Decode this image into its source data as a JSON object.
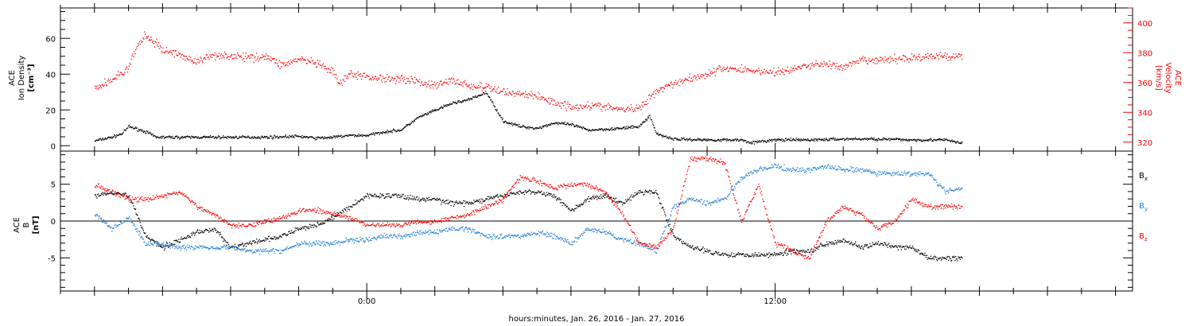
{
  "chart_data": [
    {
      "type": "scatter",
      "panel": "top",
      "ylabel_left": [
        "ACE",
        "Ion Density",
        "[cm⁻³]"
      ],
      "ylabel_right": [
        "ACE",
        "Velocity",
        "[km/s]"
      ],
      "ylim_left": [
        -3,
        77
      ],
      "ylim_right": [
        314,
        410
      ],
      "yticks_left": [
        0,
        20,
        40,
        60
      ],
      "yticks_right": [
        320,
        340,
        360,
        380,
        400
      ],
      "series": [
        {
          "axis": "left",
          "color": "#000000",
          "points": [
            [
              -8,
              3
            ],
            [
              -7.5,
              5
            ],
            [
              -7.2,
              7
            ],
            [
              -7,
              11
            ],
            [
              -6.5,
              8
            ],
            [
              -6.2,
              5
            ],
            [
              -6,
              5
            ],
            [
              -5,
              5
            ],
            [
              -4,
              5
            ],
            [
              -3,
              5
            ],
            [
              -2,
              5.5
            ],
            [
              -1.5,
              4.5
            ],
            [
              -1,
              5
            ],
            [
              -0.5,
              6
            ],
            [
              0,
              6
            ],
            [
              0.5,
              8
            ],
            [
              1,
              9
            ],
            [
              1.5,
              16
            ],
            [
              2,
              20
            ],
            [
              2.5,
              24
            ],
            [
              3,
              26
            ],
            [
              3.5,
              30
            ],
            [
              4,
              14
            ],
            [
              4.5,
              11
            ],
            [
              5,
              10
            ],
            [
              5.5,
              13
            ],
            [
              6,
              12
            ],
            [
              6.5,
              9
            ],
            [
              7,
              9.5
            ],
            [
              7.5,
              10
            ],
            [
              8,
              11
            ],
            [
              8.3,
              17
            ],
            [
              8.5,
              7
            ],
            [
              9,
              4
            ],
            [
              10,
              3.5
            ],
            [
              11,
              3.5
            ],
            [
              11.3,
              2
            ],
            [
              12,
              3.5
            ],
            [
              13,
              3.5
            ],
            [
              14,
              4
            ],
            [
              15,
              4
            ],
            [
              16,
              3.5
            ],
            [
              17,
              3.5
            ],
            [
              17.5,
              1.5
            ]
          ]
        },
        {
          "axis": "right",
          "color": "#ff0000",
          "points": [
            [
              -8,
              356
            ],
            [
              -7.5,
              362
            ],
            [
              -7,
              370
            ],
            [
              -6.8,
              383
            ],
            [
              -6.5,
              392
            ],
            [
              -6,
              382
            ],
            [
              -5.5,
              379
            ],
            [
              -5,
              374
            ],
            [
              -4.5,
              379
            ],
            [
              -4,
              378
            ],
            [
              -3.5,
              377
            ],
            [
              -3,
              378
            ],
            [
              -2.5,
              372
            ],
            [
              -2,
              376
            ],
            [
              -1.5,
              373
            ],
            [
              -1,
              367
            ],
            [
              -0.8,
              359
            ],
            [
              -0.5,
              366
            ],
            [
              0,
              364
            ],
            [
              0.5,
              363
            ],
            [
              1,
              363
            ],
            [
              1.5,
              361
            ],
            [
              2,
              358
            ],
            [
              2.5,
              362
            ],
            [
              3,
              358
            ],
            [
              3.5,
              357
            ],
            [
              4,
              354
            ],
            [
              4.5,
              353
            ],
            [
              5,
              351
            ],
            [
              5.5,
              347
            ],
            [
              6,
              344
            ],
            [
              6.5,
              345
            ],
            [
              7,
              344
            ],
            [
              7.5,
              342
            ],
            [
              8,
              343
            ],
            [
              8.5,
              355
            ],
            [
              9,
              360
            ],
            [
              9.5,
              363
            ],
            [
              10,
              366
            ],
            [
              10.5,
              370
            ],
            [
              11,
              369
            ],
            [
              11.5,
              368
            ],
            [
              12,
              367
            ],
            [
              12.5,
              369
            ],
            [
              13,
              372
            ],
            [
              13.5,
              373
            ],
            [
              14,
              370
            ],
            [
              14.5,
              375
            ],
            [
              15,
              375
            ],
            [
              16,
              377
            ],
            [
              17,
              378
            ],
            [
              17.5,
              378
            ]
          ]
        }
      ]
    },
    {
      "type": "scatter",
      "panel": "bottom",
      "ylabel_left": [
        "ACE",
        "B",
        "[nT]"
      ],
      "ylim": [
        -9.5,
        9.5
      ],
      "yticks": [
        -5,
        0,
        5
      ],
      "zero_line": true,
      "legend": [
        "Bx",
        "By",
        "Bz"
      ],
      "series": [
        {
          "name": "Bx",
          "color": "#000000",
          "points": [
            [
              -8,
              3.5
            ],
            [
              -7.5,
              4
            ],
            [
              -7,
              3.5
            ],
            [
              -6.5,
              -2
            ],
            [
              -6,
              -3.5
            ],
            [
              -5.5,
              -2.5
            ],
            [
              -5,
              -1.5
            ],
            [
              -4.5,
              -1
            ],
            [
              -4,
              -3.5
            ],
            [
              -3.5,
              -3
            ],
            [
              -3,
              -2.5
            ],
            [
              -2.5,
              -2
            ],
            [
              -2,
              -1
            ],
            [
              -1.5,
              -0.5
            ],
            [
              -1,
              0.5
            ],
            [
              -0.5,
              2
            ],
            [
              0,
              3.5
            ],
            [
              0.5,
              3.5
            ],
            [
              1,
              3.5
            ],
            [
              1.5,
              3
            ],
            [
              2,
              3
            ],
            [
              2.5,
              2.5
            ],
            [
              3,
              2.5
            ],
            [
              3.5,
              3
            ],
            [
              4,
              3.5
            ],
            [
              4.5,
              4
            ],
            [
              5,
              4
            ],
            [
              5.5,
              3.5
            ],
            [
              6,
              1.5
            ],
            [
              6.5,
              3
            ],
            [
              7,
              3.5
            ],
            [
              7.5,
              2.5
            ],
            [
              8,
              4
            ],
            [
              8.5,
              4
            ],
            [
              9,
              -2
            ],
            [
              9.5,
              -3.5
            ],
            [
              10,
              -4
            ],
            [
              10.5,
              -4.5
            ],
            [
              11,
              -4.5
            ],
            [
              11.5,
              -4.5
            ],
            [
              12,
              -4.5
            ],
            [
              12.5,
              -4
            ],
            [
              13,
              -4
            ],
            [
              13.5,
              -3
            ],
            [
              14,
              -2.5
            ],
            [
              14.5,
              -3.5
            ],
            [
              15,
              -3
            ],
            [
              15.5,
              -3.5
            ],
            [
              16,
              -3.5
            ],
            [
              16.5,
              -5
            ],
            [
              17,
              -5
            ],
            [
              17.5,
              -5
            ]
          ]
        },
        {
          "name": "By",
          "color": "#1e7fd6",
          "points": [
            [
              -8,
              1
            ],
            [
              -7.5,
              -1
            ],
            [
              -7,
              0.5
            ],
            [
              -6.5,
              -3
            ],
            [
              -6,
              -3
            ],
            [
              -5.5,
              -3.5
            ],
            [
              -5,
              -3.5
            ],
            [
              -4.5,
              -3.5
            ],
            [
              -4,
              -3.5
            ],
            [
              -3.5,
              -4
            ],
            [
              -3,
              -4
            ],
            [
              -2.5,
              -4
            ],
            [
              -2,
              -3
            ],
            [
              -1.5,
              -3
            ],
            [
              -1,
              -3
            ],
            [
              -0.5,
              -2.5
            ],
            [
              0,
              -2.5
            ],
            [
              0.5,
              -2
            ],
            [
              1,
              -2
            ],
            [
              1.5,
              -1.5
            ],
            [
              2,
              -1.5
            ],
            [
              2.5,
              -1
            ],
            [
              3,
              -1
            ],
            [
              3.5,
              -2
            ],
            [
              4,
              -2
            ],
            [
              4.5,
              -2
            ],
            [
              5,
              -1.5
            ],
            [
              5.5,
              -2
            ],
            [
              6,
              -3
            ],
            [
              6.5,
              -1
            ],
            [
              7,
              -1.5
            ],
            [
              7.5,
              -2.5
            ],
            [
              8,
              -3
            ],
            [
              8.5,
              -4
            ],
            [
              9,
              2
            ],
            [
              9.5,
              3
            ],
            [
              10,
              2.5
            ],
            [
              10.5,
              3
            ],
            [
              11,
              6
            ],
            [
              11.5,
              7
            ],
            [
              12,
              7.5
            ],
            [
              12.5,
              7
            ],
            [
              13,
              7
            ],
            [
              13.5,
              7.5
            ],
            [
              14,
              7
            ],
            [
              14.5,
              7
            ],
            [
              15,
              6.5
            ],
            [
              16,
              6.5
            ],
            [
              16.5,
              6.5
            ],
            [
              17,
              4
            ],
            [
              17.5,
              4.5
            ]
          ]
        },
        {
          "name": "Bz",
          "color": "#ff0000",
          "points": [
            [
              -8,
              5
            ],
            [
              -7.5,
              4
            ],
            [
              -7,
              3
            ],
            [
              -6.5,
              3
            ],
            [
              -6,
              3.5
            ],
            [
              -5.5,
              4
            ],
            [
              -5,
              2
            ],
            [
              -4.5,
              1
            ],
            [
              -4,
              -0.5
            ],
            [
              -3.5,
              -0.5
            ],
            [
              -3,
              0
            ],
            [
              -2.5,
              0.5
            ],
            [
              -2,
              1.5
            ],
            [
              -1.5,
              1.5
            ],
            [
              -1,
              1
            ],
            [
              -0.5,
              0.5
            ],
            [
              0,
              -0.5
            ],
            [
              0.5,
              -0.5
            ],
            [
              1,
              -0.5
            ],
            [
              1.5,
              0
            ],
            [
              2,
              0
            ],
            [
              2.5,
              0.5
            ],
            [
              3,
              1
            ],
            [
              3.5,
              2
            ],
            [
              4,
              3
            ],
            [
              4.5,
              6
            ],
            [
              5,
              5.5
            ],
            [
              5.5,
              4.5
            ],
            [
              6,
              5
            ],
            [
              6.5,
              5
            ],
            [
              7,
              4
            ],
            [
              7.5,
              1
            ],
            [
              8,
              -3
            ],
            [
              8.5,
              -3.5
            ],
            [
              9,
              -1
            ],
            [
              9.5,
              8.5
            ],
            [
              10,
              8.5
            ],
            [
              10.5,
              8
            ],
            [
              11,
              0
            ],
            [
              11.5,
              5
            ],
            [
              12,
              -3
            ],
            [
              12.5,
              -4
            ],
            [
              13,
              -5
            ],
            [
              13.5,
              0
            ],
            [
              14,
              2
            ],
            [
              14.5,
              1
            ],
            [
              15,
              -1
            ],
            [
              15.5,
              0
            ],
            [
              16,
              3
            ],
            [
              16.5,
              2
            ],
            [
              17,
              2
            ],
            [
              17.5,
              2
            ]
          ]
        }
      ]
    }
  ],
  "xaxis": {
    "range_hours": [
      -9,
      22.5
    ],
    "major_ticks": [
      0,
      12
    ],
    "tick_labels": [
      "0:00",
      "12:00"
    ],
    "minor_tick_step": 1,
    "xlabel": "hours:minutes, Jan. 26, 2016 - Jan. 27, 2016"
  },
  "colors": {
    "density": "#000000",
    "velocity": "#ff0000",
    "bx": "#000000",
    "by": "#1e7fd6",
    "bz": "#ff0000"
  }
}
